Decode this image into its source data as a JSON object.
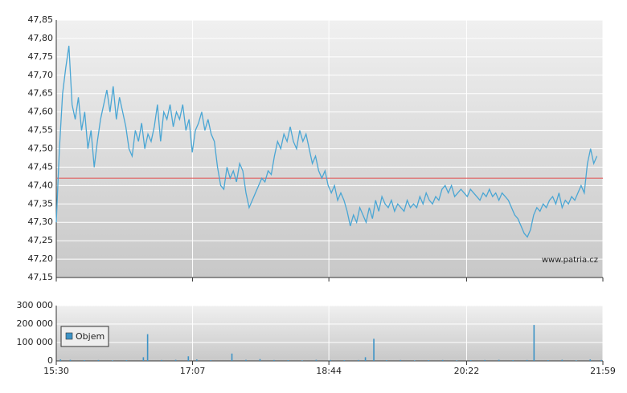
{
  "chart_data": [
    {
      "type": "line",
      "annotation": "www.patria.cz",
      "xlim": [
        0,
        389
      ],
      "ylim": [
        47.15,
        47.85
      ],
      "yticks": [
        {
          "value": 47.15,
          "label": "47,15"
        },
        {
          "value": 47.2,
          "label": "47,20"
        },
        {
          "value": 47.25,
          "label": "47,25"
        },
        {
          "value": 47.3,
          "label": "47,30"
        },
        {
          "value": 47.35,
          "label": "47,35"
        },
        {
          "value": 47.4,
          "label": "47,40"
        },
        {
          "value": 47.45,
          "label": "47,45"
        },
        {
          "value": 47.5,
          "label": "47,50"
        },
        {
          "value": 47.55,
          "label": "47,55"
        },
        {
          "value": 47.6,
          "label": "47,60"
        },
        {
          "value": 47.65,
          "label": "47,65"
        },
        {
          "value": 47.7,
          "label": "47,70"
        },
        {
          "value": 47.75,
          "label": "47,75"
        },
        {
          "value": 47.8,
          "label": "47,80"
        },
        {
          "value": 47.85,
          "label": "47,85"
        }
      ],
      "grid": true,
      "reference_line": {
        "value": 47.42,
        "color": "#e06060"
      },
      "x": [
        0,
        2.25,
        4.5,
        6.75,
        9,
        11.25,
        13.5,
        15.75,
        18,
        20.25,
        22.5,
        24.75,
        27,
        29.25,
        31.5,
        33.75,
        36,
        38.25,
        40.5,
        42.75,
        45,
        47.25,
        49.5,
        51.75,
        54,
        56.25,
        58.5,
        60.75,
        63,
        65.25,
        67.5,
        69.75,
        72,
        74.25,
        76.5,
        78.75,
        81,
        83.25,
        85.5,
        87.75,
        90,
        92.25,
        94.5,
        96.75,
        99,
        101.25,
        103.5,
        105.75,
        108,
        110.25,
        112.5,
        114.75,
        117,
        119.25,
        121.5,
        123.75,
        126,
        128.25,
        130.5,
        132.75,
        135,
        137.25,
        139.5,
        141.75,
        144,
        146.25,
        148.5,
        150.75,
        153,
        155.25,
        157.5,
        159.75,
        162,
        164.25,
        166.5,
        168.75,
        171,
        173.25,
        175.5,
        177.75,
        180,
        182.25,
        184.5,
        186.75,
        189,
        191.25,
        193.5,
        195.75,
        198,
        200.25,
        202.5,
        204.75,
        207,
        209.25,
        211.5,
        213.75,
        216,
        218.25,
        220.5,
        222.75,
        225,
        227.25,
        229.5,
        231.75,
        234,
        236.25,
        238.5,
        240.75,
        243,
        245.25,
        247.5,
        249.75,
        252,
        254.25,
        256.5,
        258.75,
        261,
        263.25,
        265.5,
        267.75,
        270,
        272.25,
        274.5,
        276.75,
        279,
        281.25,
        283.5,
        285.75,
        288,
        290.25,
        292.5,
        294.75,
        297,
        299.25,
        301.5,
        303.75,
        306,
        308.25,
        310.5,
        312.75,
        315,
        317.25,
        319.5,
        321.75,
        324,
        326.25,
        328.5,
        330.75,
        333,
        335.25,
        337.5,
        339.75,
        342,
        344.25,
        346.5,
        348.75,
        351,
        353.25,
        355.5,
        357.75,
        360,
        362.25,
        364.5,
        366.75,
        369,
        371.25,
        373.5,
        375.75,
        378,
        380.25,
        382.5,
        384.75
      ],
      "series": [
        {
          "color": "#4aa6d4",
          "values": [
            47.3,
            47.5,
            47.65,
            47.72,
            47.78,
            47.62,
            47.58,
            47.64,
            47.55,
            47.6,
            47.5,
            47.55,
            47.45,
            47.52,
            47.58,
            47.62,
            47.66,
            47.6,
            47.67,
            47.58,
            47.64,
            47.6,
            47.56,
            47.5,
            47.48,
            47.55,
            47.52,
            47.57,
            47.5,
            47.54,
            47.52,
            47.56,
            47.62,
            47.52,
            47.6,
            47.58,
            47.62,
            47.56,
            47.6,
            47.58,
            47.62,
            47.55,
            47.58,
            47.49,
            47.55,
            47.57,
            47.6,
            47.55,
            47.58,
            47.54,
            47.52,
            47.45,
            47.4,
            47.39,
            47.45,
            47.42,
            47.44,
            47.41,
            47.46,
            47.44,
            47.38,
            47.34,
            47.36,
            47.38,
            47.4,
            47.42,
            47.41,
            47.44,
            47.43,
            47.48,
            47.52,
            47.5,
            47.54,
            47.52,
            47.56,
            47.52,
            47.5,
            47.55,
            47.52,
            47.54,
            47.5,
            47.46,
            47.48,
            47.44,
            47.42,
            47.44,
            47.4,
            47.38,
            47.4,
            47.36,
            47.38,
            47.36,
            47.33,
            47.29,
            47.32,
            47.3,
            47.34,
            47.32,
            47.3,
            47.34,
            47.31,
            47.36,
            47.33,
            47.37,
            47.35,
            47.34,
            47.36,
            47.33,
            47.35,
            47.34,
            47.33,
            47.36,
            47.34,
            47.35,
            47.34,
            47.37,
            47.35,
            47.38,
            47.36,
            47.35,
            47.37,
            47.36,
            47.39,
            47.4,
            47.38,
            47.4,
            47.37,
            47.38,
            47.39,
            47.38,
            47.37,
            47.39,
            47.38,
            47.37,
            47.36,
            47.38,
            47.37,
            47.39,
            47.37,
            47.38,
            47.36,
            47.38,
            47.37,
            47.36,
            47.34,
            47.32,
            47.31,
            47.29,
            47.27,
            47.26,
            47.28,
            47.32,
            47.34,
            47.33,
            47.35,
            47.34,
            47.36,
            47.37,
            47.35,
            47.38,
            47.34,
            47.36,
            47.35,
            47.37,
            47.36,
            47.38,
            47.4,
            47.38,
            47.46,
            47.5,
            47.46,
            47.48
          ]
        }
      ]
    },
    {
      "type": "bar",
      "xlim": [
        0,
        389
      ],
      "xticks": [
        {
          "value": 0,
          "label": "15:30"
        },
        {
          "value": 97,
          "label": "17:07"
        },
        {
          "value": 194,
          "label": "18:44"
        },
        {
          "value": 292,
          "label": "20:22"
        },
        {
          "value": 389,
          "label": "21:59"
        }
      ],
      "ylim": [
        0,
        300000
      ],
      "yticks": [
        0,
        {
          "value": 100000,
          "label": "100 000"
        },
        {
          "value": 200000,
          "label": "200 000"
        },
        {
          "value": 300000,
          "label": "300 000"
        }
      ],
      "grid": true,
      "legend": "upper left",
      "x": [
        3,
        10,
        20,
        30,
        40,
        50,
        62,
        65,
        75,
        85,
        94,
        100,
        110,
        125,
        135,
        145,
        155,
        165,
        175,
        185,
        195,
        205,
        215,
        220,
        226,
        235,
        245,
        255,
        265,
        275,
        285,
        295,
        305,
        315,
        325,
        335,
        340,
        350,
        360,
        370,
        380,
        388
      ],
      "series": [
        {
          "name": "Objem",
          "color": "#3d93c6",
          "values": [
            8000,
            6000,
            4000,
            5000,
            3000,
            4000,
            20000,
            145000,
            5000,
            6000,
            25000,
            8000,
            4000,
            40000,
            6000,
            10000,
            5000,
            4000,
            3000,
            6000,
            5000,
            4000,
            5000,
            20000,
            120000,
            4000,
            5000,
            3000,
            4000,
            5000,
            3000,
            4000,
            5000,
            6000,
            4000,
            5000,
            195000,
            4000,
            6000,
            3000,
            8000,
            5000
          ]
        }
      ]
    }
  ]
}
